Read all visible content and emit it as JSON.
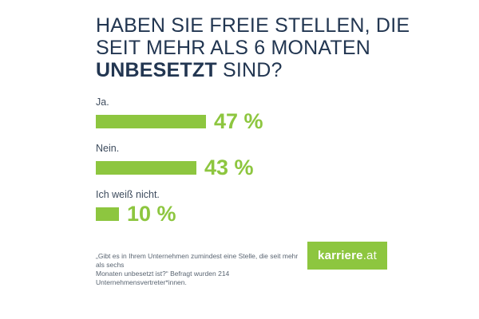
{
  "title": {
    "line1": "HABEN SIE FREIE STELLEN, DIE",
    "line2": "SEIT MEHR ALS 6 MONATEN",
    "line3_bold": "UNBESETZT",
    "line3_rest": " SIND?"
  },
  "chart_data": {
    "type": "bar",
    "orientation": "horizontal",
    "categories": [
      "Ja.",
      "Nein.",
      "Ich weiß nicht."
    ],
    "values": [
      47,
      43,
      10
    ],
    "value_labels": [
      "47 %",
      "43 %",
      "10 %"
    ],
    "unit": "%",
    "xlim": [
      0,
      100
    ],
    "grid": false,
    "legend": false,
    "bar_color": "#8DC63F",
    "title": "Haben Sie freie Stellen, die seit mehr als 6 Monaten unbesetzt sind?"
  },
  "footnote": {
    "line1": "„Gibt es in Ihrem Unternehmen zumindest eine Stelle, die seit mehr als sechs",
    "line2": "Monaten unbesetzt ist?“ Befragt wurden 214 Unternehmensvertreter*innen."
  },
  "logo": {
    "brand": "karriere",
    "tld": ".at",
    "bg_color": "#8DC63F"
  },
  "colors": {
    "green": "#8DC63F",
    "navy": "#223651",
    "label": "#3E4C5E",
    "footnote": "#5A6572",
    "background": "#FFFFFF"
  }
}
